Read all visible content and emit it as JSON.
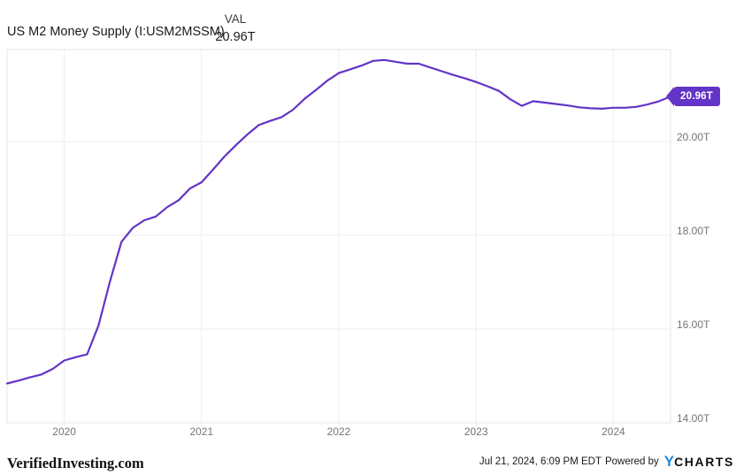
{
  "header": {
    "title": "US M2 Money Supply (I:USM2MSSM)",
    "legend_label": "VAL",
    "legend_value": "20.96T"
  },
  "chart_data": {
    "type": "line",
    "title": "US M2 Money Supply (I:USM2MSSM)",
    "series_name": "US M2 Money Supply",
    "unit": "trillions USD",
    "line_color": "#6334C8",
    "grid": true,
    "legend_position": "top",
    "ylim": [
      13.96,
      21.96
    ],
    "current_value_label": "20.96T",
    "x": [
      "2019-07",
      "2019-08",
      "2019-09",
      "2019-10",
      "2019-11",
      "2019-12",
      "2020-01",
      "2020-02",
      "2020-03",
      "2020-04",
      "2020-05",
      "2020-06",
      "2020-07",
      "2020-08",
      "2020-09",
      "2020-10",
      "2020-11",
      "2020-12",
      "2021-01",
      "2021-02",
      "2021-03",
      "2021-04",
      "2021-05",
      "2021-06",
      "2021-07",
      "2021-08",
      "2021-09",
      "2021-10",
      "2021-11",
      "2021-12",
      "2022-01",
      "2022-02",
      "2022-03",
      "2022-04",
      "2022-05",
      "2022-06",
      "2022-07",
      "2022-08",
      "2022-09",
      "2022-10",
      "2022-11",
      "2022-12",
      "2023-01",
      "2023-02",
      "2023-03",
      "2023-04",
      "2023-05",
      "2023-06",
      "2023-07",
      "2023-08",
      "2023-09",
      "2023-10",
      "2023-11",
      "2023-12",
      "2024-01",
      "2024-02",
      "2024-03",
      "2024-04",
      "2024-05"
    ],
    "values": [
      14.84,
      14.9,
      14.97,
      15.03,
      15.15,
      15.33,
      15.4,
      15.46,
      16.08,
      17.02,
      17.86,
      18.16,
      18.32,
      18.4,
      18.6,
      18.75,
      19.0,
      19.13,
      19.4,
      19.68,
      19.92,
      20.15,
      20.35,
      20.44,
      20.52,
      20.68,
      20.91,
      21.1,
      21.3,
      21.46,
      21.54,
      21.62,
      21.72,
      21.74,
      21.7,
      21.66,
      21.66,
      21.58,
      21.5,
      21.42,
      21.35,
      21.27,
      21.18,
      21.08,
      20.9,
      20.76,
      20.86,
      20.83,
      20.8,
      20.77,
      20.73,
      20.71,
      20.7,
      20.72,
      20.72,
      20.74,
      20.79,
      20.86,
      20.96
    ],
    "y_ticks": [
      {
        "value": 20,
        "label": "20.00T"
      },
      {
        "value": 18,
        "label": "18.00T"
      },
      {
        "value": 16,
        "label": "16.00T"
      },
      {
        "value": 14,
        "label": "14.00T"
      }
    ],
    "x_ticks": [
      "2020",
      "2021",
      "2022",
      "2023",
      "2024"
    ]
  },
  "colors": {
    "accent": "#6334C8",
    "logo_blue": "#1E8CE3",
    "axis_label": "#757575"
  },
  "footer": {
    "brand": "VerifiedInvesting.com",
    "timestamp": "Jul 21, 2024, 6:09 PM EDT",
    "powered_by": "Powered by",
    "logo_y": "Y",
    "logo_charts": "CHARTS"
  }
}
